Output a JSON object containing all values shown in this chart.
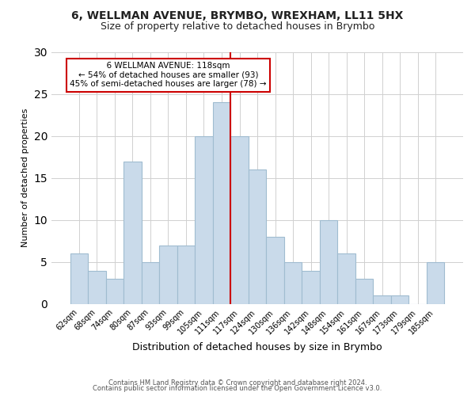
{
  "title1": "6, WELLMAN AVENUE, BRYMBO, WREXHAM, LL11 5HX",
  "title2": "Size of property relative to detached houses in Brymbo",
  "xlabel": "Distribution of detached houses by size in Brymbo",
  "ylabel": "Number of detached properties",
  "footnote1": "Contains HM Land Registry data © Crown copyright and database right 2024.",
  "footnote2": "Contains public sector information licensed under the Open Government Licence v3.0.",
  "categories": [
    "62sqm",
    "68sqm",
    "74sqm",
    "80sqm",
    "87sqm",
    "93sqm",
    "99sqm",
    "105sqm",
    "111sqm",
    "117sqm",
    "124sqm",
    "130sqm",
    "136sqm",
    "142sqm",
    "148sqm",
    "154sqm",
    "161sqm",
    "167sqm",
    "173sqm",
    "179sqm",
    "185sqm"
  ],
  "values": [
    6,
    4,
    3,
    17,
    5,
    7,
    7,
    20,
    24,
    20,
    16,
    8,
    5,
    4,
    10,
    6,
    3,
    1,
    1,
    0,
    5
  ],
  "bar_color": "#c9daea",
  "bar_edge_color": "#a0bcd0",
  "vline_color": "#cc0000",
  "annotation_title": "6 WELLMAN AVENUE: 118sqm",
  "annotation_line1": "← 54% of detached houses are smaller (93)",
  "annotation_line2": "45% of semi-detached houses are larger (78) →",
  "annotation_box_color": "#ffffff",
  "annotation_box_edge": "#cc0000",
  "ylim": [
    0,
    30
  ],
  "yticks": [
    0,
    5,
    10,
    15,
    20,
    25,
    30
  ],
  "grid_color": "#d0d0d0",
  "bg_color": "#ffffff",
  "title1_fontsize": 10,
  "title2_fontsize": 9,
  "xlabel_fontsize": 9,
  "ylabel_fontsize": 8,
  "tick_fontsize": 7,
  "footnote_fontsize": 6
}
